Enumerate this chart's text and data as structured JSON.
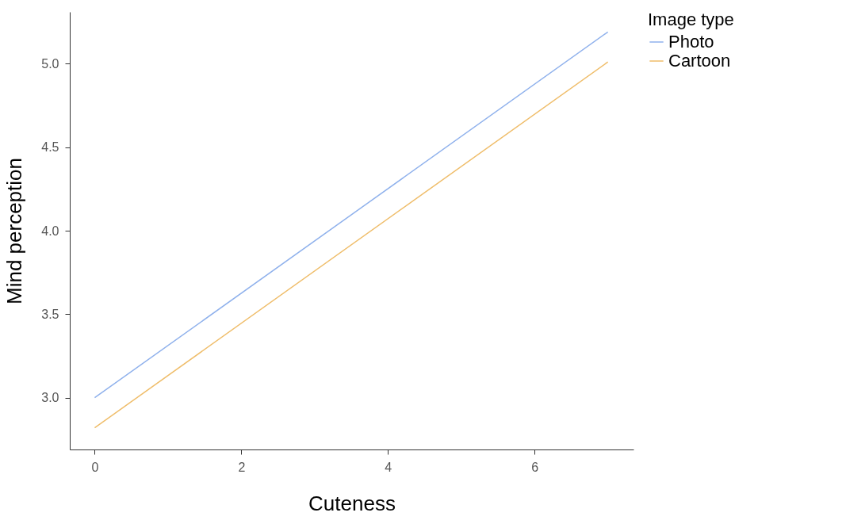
{
  "chart_data": {
    "type": "line",
    "xlabel": "Cuteness",
    "ylabel": "Mind perception",
    "legend_title": "Image type",
    "x": [
      0,
      7
    ],
    "series": [
      {
        "name": "Photo",
        "color": "#8fb1ec",
        "values": [
          3.0,
          5.19
        ]
      },
      {
        "name": "Cartoon",
        "color": "#efbd6a",
        "values": [
          2.82,
          5.01
        ]
      }
    ],
    "xlim": [
      -0.34,
      7.35
    ],
    "xticks": [
      0,
      2,
      4,
      6
    ],
    "ylim": [
      2.69,
      5.31
    ],
    "yticks": [
      {
        "value": 3,
        "label": "3.0"
      },
      {
        "value": 3.5,
        "label": "3.5"
      },
      {
        "value": 4,
        "label": "4.0"
      },
      {
        "value": 4.5,
        "label": "4.5"
      },
      {
        "value": 5,
        "label": "5.0"
      }
    ],
    "grid": false,
    "legend": "right",
    "marker": "none",
    "line_style": "solid"
  }
}
